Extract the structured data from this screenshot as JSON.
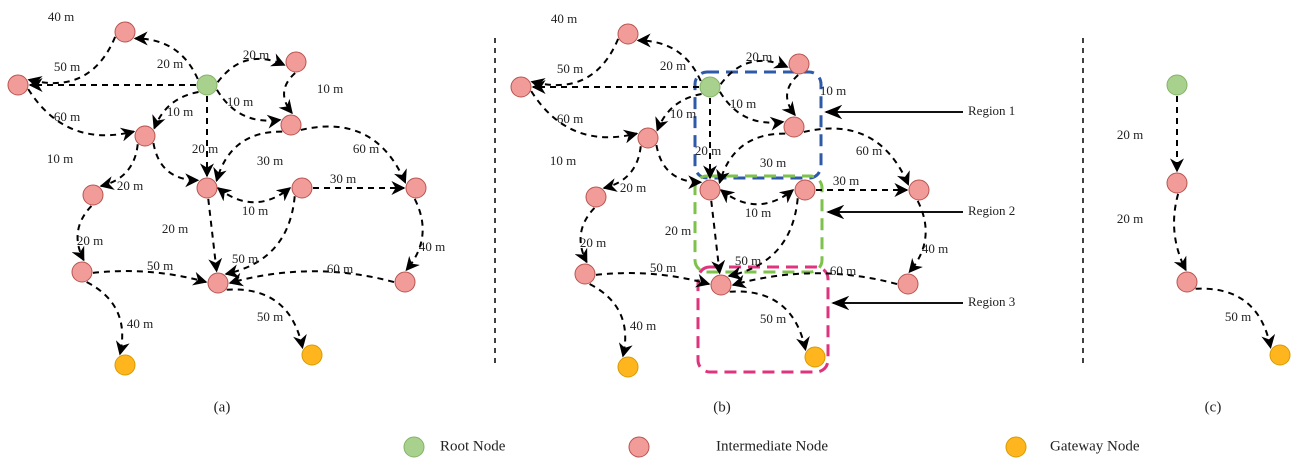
{
  "panel_a": {
    "caption": "(a)",
    "edge_labels": [
      "40 m",
      "50 m",
      "20 m",
      "20 m",
      "10 m",
      "10 m",
      "10 m",
      "60 m",
      "10 m",
      "20 m",
      "20 m",
      "30 m",
      "60 m",
      "10 m",
      "30 m",
      "20 m",
      "20 m",
      "50 m",
      "50 m",
      "60 m",
      "40 m",
      "40 m",
      "50 m"
    ]
  },
  "panel_b": {
    "caption": "(b)",
    "edge_labels": [
      "40 m",
      "50 m",
      "20 m",
      "20 m",
      "10 m",
      "10 m",
      "10 m",
      "60 m",
      "10 m",
      "20 m",
      "20 m",
      "30 m",
      "60 m",
      "10 m",
      "30 m",
      "20 m",
      "20 m",
      "50 m",
      "50 m",
      "60 m",
      "40 m",
      "40 m",
      "50 m"
    ],
    "regions": [
      "Region 1",
      "Region 2",
      "Region 3"
    ]
  },
  "panel_c": {
    "caption": "(c)",
    "edge_labels": [
      "20 m",
      "20 m",
      "50 m"
    ]
  },
  "legend": [
    "Root Node",
    "Intermediate Node",
    "Gateway Node"
  ]
}
